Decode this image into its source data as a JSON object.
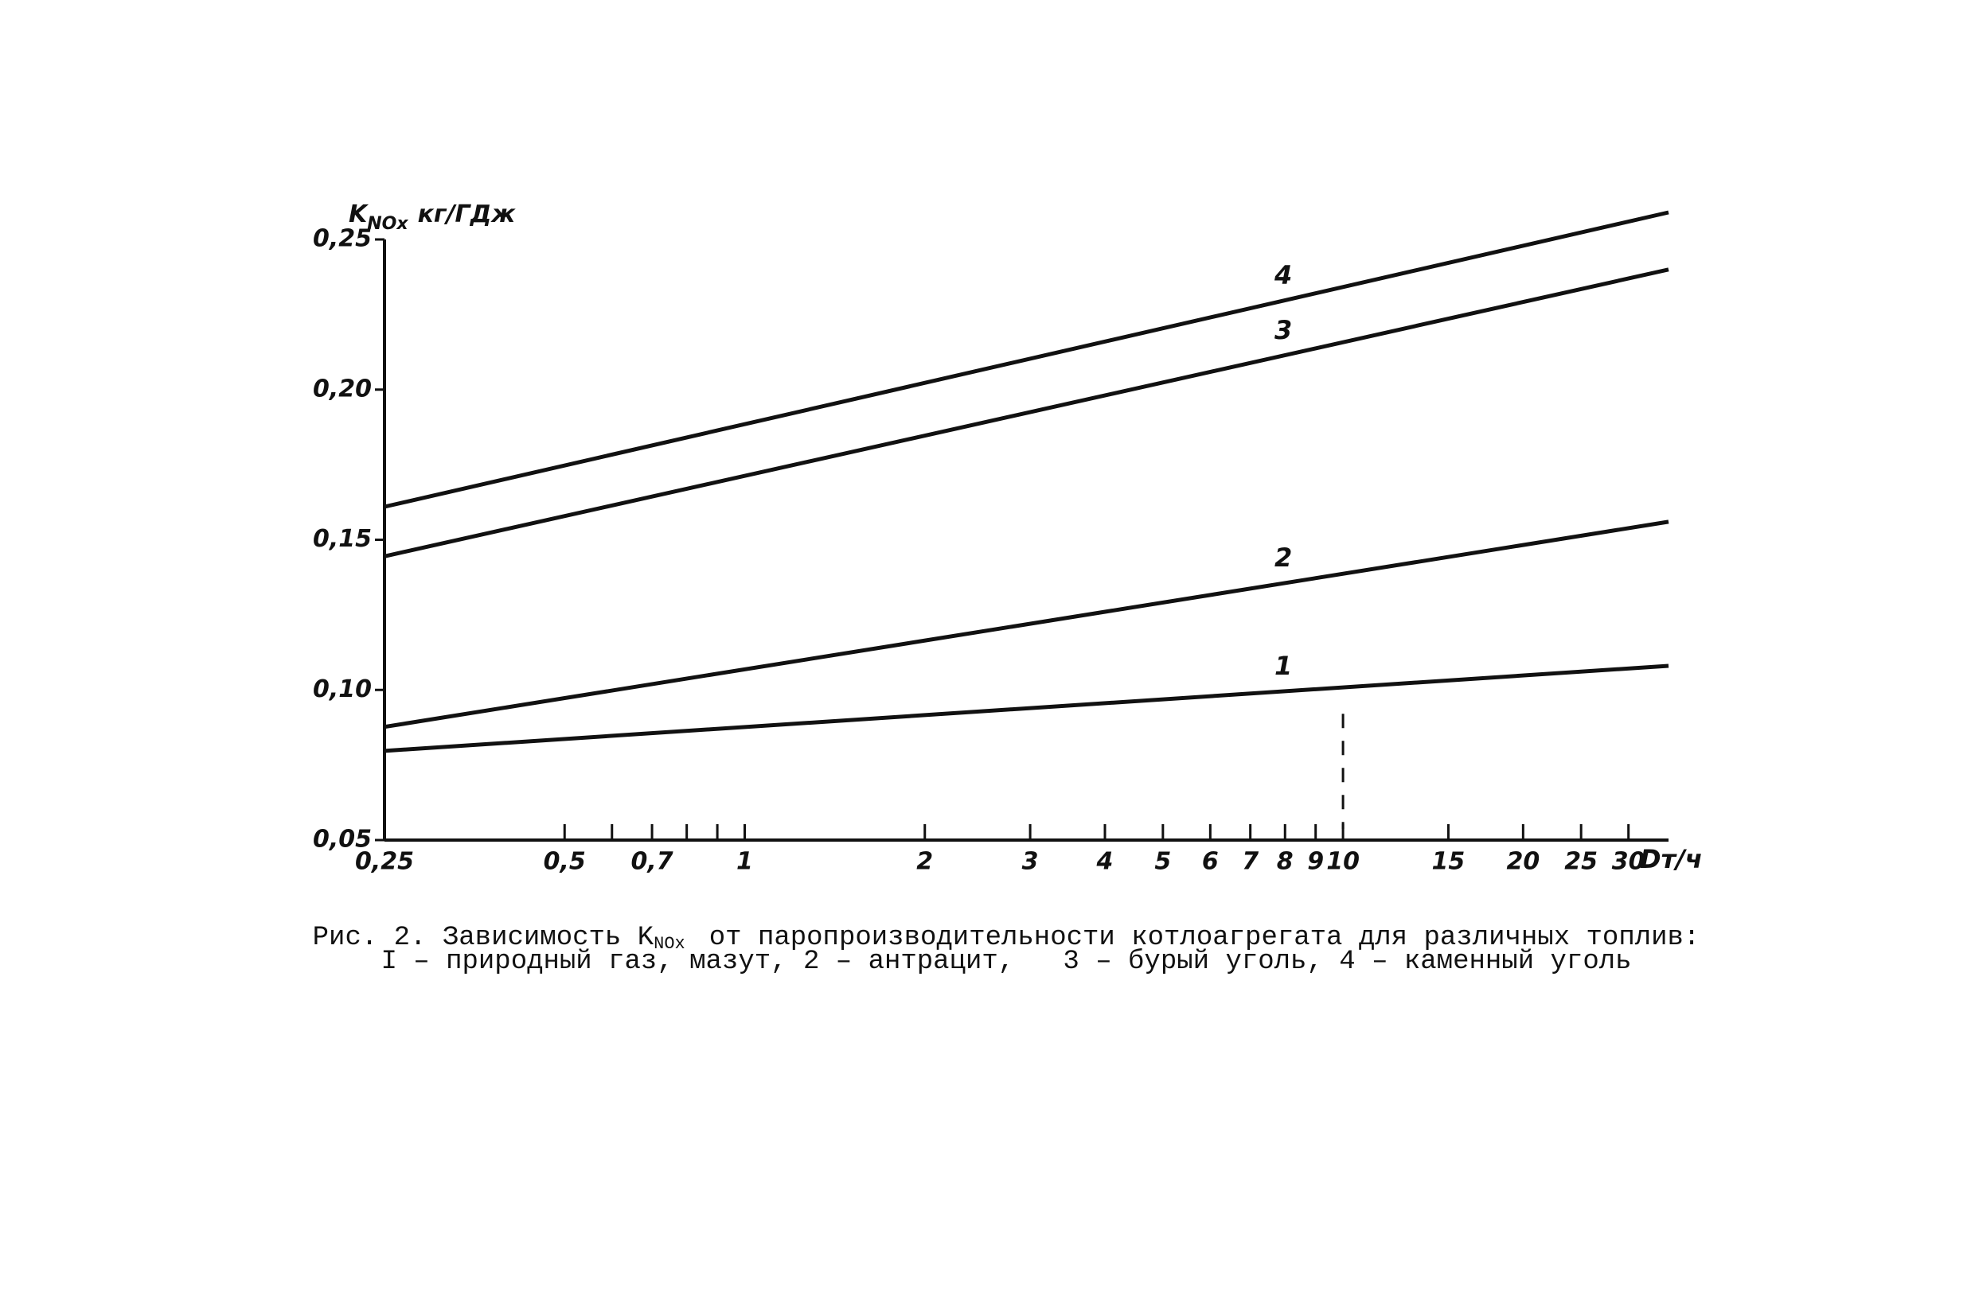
{
  "chart_data": {
    "type": "line",
    "ylabel": {
      "main": "K",
      "sub": "NOx",
      "unit": "кг/ГДж"
    },
    "xlabel": "Dт/ч",
    "log_x": true,
    "xlim": [
      0.25,
      35
    ],
    "ylim": [
      0.05,
      0.25
    ],
    "xticks": [
      {
        "value": 0.25,
        "label": "0,25"
      },
      {
        "value": 0.5,
        "label": "0,5"
      },
      {
        "value": 0.7,
        "label": "0,7"
      },
      1,
      2,
      3,
      4,
      5,
      6,
      7,
      8,
      9,
      10,
      15,
      20,
      25,
      30
    ],
    "xminorticks": [
      0.6,
      0.8,
      0.9
    ],
    "yticks": [
      {
        "value": 0.05,
        "label": "0,05"
      },
      {
        "value": 0.1,
        "label": "0,10"
      },
      {
        "value": 0.15,
        "label": "0,15"
      },
      {
        "value": 0.2,
        "label": "0,20"
      },
      {
        "value": 0.25,
        "label": "0,25"
      }
    ],
    "reference_x": 10,
    "series": [
      {
        "name": "1",
        "color": "#111111",
        "x": [
          0.25,
          35
        ],
        "values": [
          0.0797,
          0.108
        ]
      },
      {
        "name": "2",
        "color": "#111111",
        "x": [
          0.25,
          35
        ],
        "values": [
          0.0877,
          0.156
        ]
      },
      {
        "name": "3",
        "color": "#111111",
        "x": [
          0.25,
          35
        ],
        "values": [
          0.1445,
          0.24
        ]
      },
      {
        "name": "4",
        "color": "#111111",
        "x": [
          0.25,
          35
        ],
        "values": [
          0.161,
          0.259
        ]
      }
    ],
    "caption": {
      "prefix": "Рис. 2. Зависимость K",
      "sub": "NOx",
      "rest": "от паропроизводительности котлоагрегата для различных топлив:",
      "line2": "I – природный газ, мазут, 2 – антрацит,   3 – бурый уголь, 4 – каменный уголь"
    }
  }
}
